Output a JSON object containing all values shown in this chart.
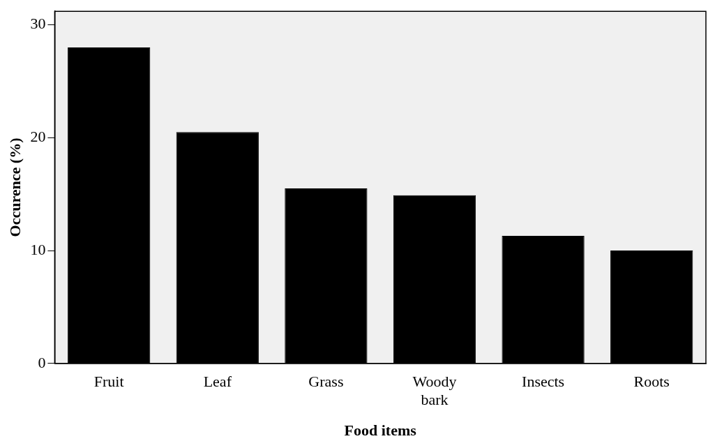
{
  "chart_data": {
    "type": "bar",
    "xlabel": "Food items",
    "ylabel": "Occurence (%)",
    "categories": [
      "Fruit",
      "Leaf",
      "Grass",
      "Woody bark",
      "Insects",
      "Roots"
    ],
    "values": [
      28.0,
      20.5,
      15.5,
      14.9,
      11.3,
      10.0
    ],
    "color": "#000000",
    "ylim": [
      0,
      31.2
    ],
    "yticks": [
      0,
      10,
      20,
      30
    ],
    "grid": false,
    "legend": false
  }
}
